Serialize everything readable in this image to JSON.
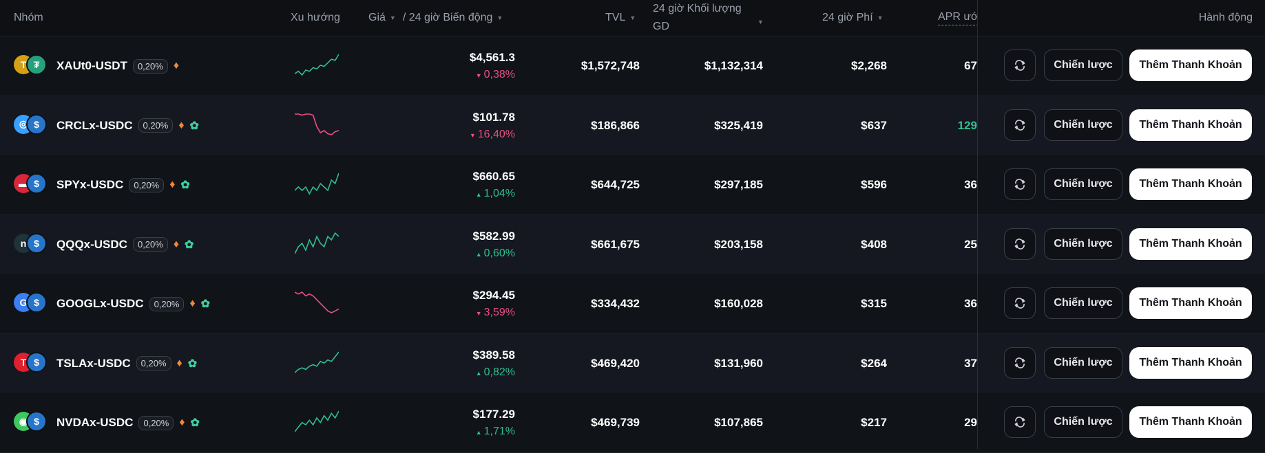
{
  "header": {
    "group": "Nhóm",
    "trend": "Xu hướng",
    "price": "Giá",
    "change": "/ 24 giờ Biến động",
    "tvl": "TVL",
    "volume_line1": "24 giờ Khối lượng",
    "volume_line2": "GD",
    "fees": "24 giờ Phí",
    "apr": "APR ướ",
    "actions": "Hành động"
  },
  "buttons": {
    "strategy": "Chiến lược",
    "add_liquidity": "Thêm Thanh Khoản"
  },
  "colors": {
    "up": "#2fbf8f",
    "down": "#ea4f82",
    "background": "#0e1014",
    "accent_button": "#ffffff"
  },
  "rows": [
    {
      "pair": "XAUt0-USDT",
      "fee": "0,20%",
      "tags": [
        "money-bag-icon"
      ],
      "coin_a": "gold",
      "coin_b": "tether",
      "price": "$4,561.3",
      "change": "0,38%",
      "dir": "down",
      "trend": "up",
      "spark": [
        10,
        12,
        9,
        13,
        12,
        15,
        14,
        17,
        16,
        19,
        22,
        21,
        26
      ],
      "tvl": "$1,572,748",
      "volume": "$1,132,314",
      "fees": "$2,268",
      "apr": "67",
      "apr_color": "#ffffff"
    },
    {
      "pair": "CRCLx-USDC",
      "fee": "0,20%",
      "tags": [
        "money-bag-icon",
        "leaf-icon"
      ],
      "coin_a": "crcl",
      "coin_b": "usdc",
      "price": "$101.78",
      "change": "16,40%",
      "dir": "down",
      "trend": "down",
      "spark": [
        26,
        26,
        25,
        26,
        26,
        25,
        14,
        8,
        10,
        7,
        6,
        9,
        10
      ],
      "tvl": "$186,866",
      "volume": "$325,419",
      "fees": "$637",
      "apr": "129",
      "apr_color": "#2fbf8f"
    },
    {
      "pair": "SPYx-USDC",
      "fee": "0,20%",
      "tags": [
        "money-bag-icon",
        "leaf-icon"
      ],
      "coin_a": "spy",
      "coin_b": "usdc",
      "price": "$660.65",
      "change": "1,04%",
      "dir": "up",
      "trend": "up",
      "spark": [
        14,
        15,
        14,
        15,
        13,
        15,
        14,
        16,
        15,
        14,
        17,
        16,
        19
      ],
      "tvl": "$644,725",
      "volume": "$297,185",
      "fees": "$596",
      "apr": "36",
      "apr_color": "#ffffff"
    },
    {
      "pair": "QQQx-USDC",
      "fee": "0,20%",
      "tags": [
        "money-bag-icon",
        "leaf-icon"
      ],
      "coin_a": "qqq",
      "coin_b": "usdc",
      "price": "$582.99",
      "change": "0,60%",
      "dir": "up",
      "trend": "up",
      "spark": [
        12,
        14,
        15,
        13,
        16,
        14,
        17,
        15,
        14,
        17,
        16,
        18,
        17
      ],
      "tvl": "$661,675",
      "volume": "$203,158",
      "fees": "$408",
      "apr": "25",
      "apr_color": "#ffffff"
    },
    {
      "pair": "GOOGLx-USDC",
      "fee": "0,20%",
      "tags": [
        "money-bag-icon",
        "leaf-icon"
      ],
      "coin_a": "goog",
      "coin_b": "usdc",
      "price": "$294.45",
      "change": "3,59%",
      "dir": "down",
      "trend": "down",
      "spark": [
        24,
        23,
        24,
        22,
        23,
        22,
        20,
        18,
        16,
        14,
        13,
        14,
        15
      ],
      "tvl": "$334,432",
      "volume": "$160,028",
      "fees": "$315",
      "apr": "36",
      "apr_color": "#ffffff"
    },
    {
      "pair": "TSLAx-USDC",
      "fee": "0,20%",
      "tags": [
        "money-bag-icon",
        "leaf-icon"
      ],
      "coin_a": "tsla",
      "coin_b": "usdc",
      "price": "$389.58",
      "change": "0,82%",
      "dir": "up",
      "trend": "up",
      "spark": [
        10,
        12,
        13,
        12,
        14,
        15,
        14,
        17,
        16,
        18,
        17,
        20,
        23
      ],
      "tvl": "$469,420",
      "volume": "$131,960",
      "fees": "$264",
      "apr": "37",
      "apr_color": "#ffffff"
    },
    {
      "pair": "NVDAx-USDC",
      "fee": "0,20%",
      "tags": [
        "money-bag-icon",
        "leaf-icon"
      ],
      "coin_a": "nvda",
      "coin_b": "usdc",
      "price": "$177.29",
      "change": "1,71%",
      "dir": "up",
      "trend": "up",
      "spark": [
        12,
        14,
        16,
        15,
        17,
        15,
        18,
        16,
        19,
        17,
        20,
        18,
        21
      ],
      "tvl": "$469,739",
      "volume": "$107,865",
      "fees": "$217",
      "apr": "29",
      "apr_color": "#ffffff"
    }
  ]
}
